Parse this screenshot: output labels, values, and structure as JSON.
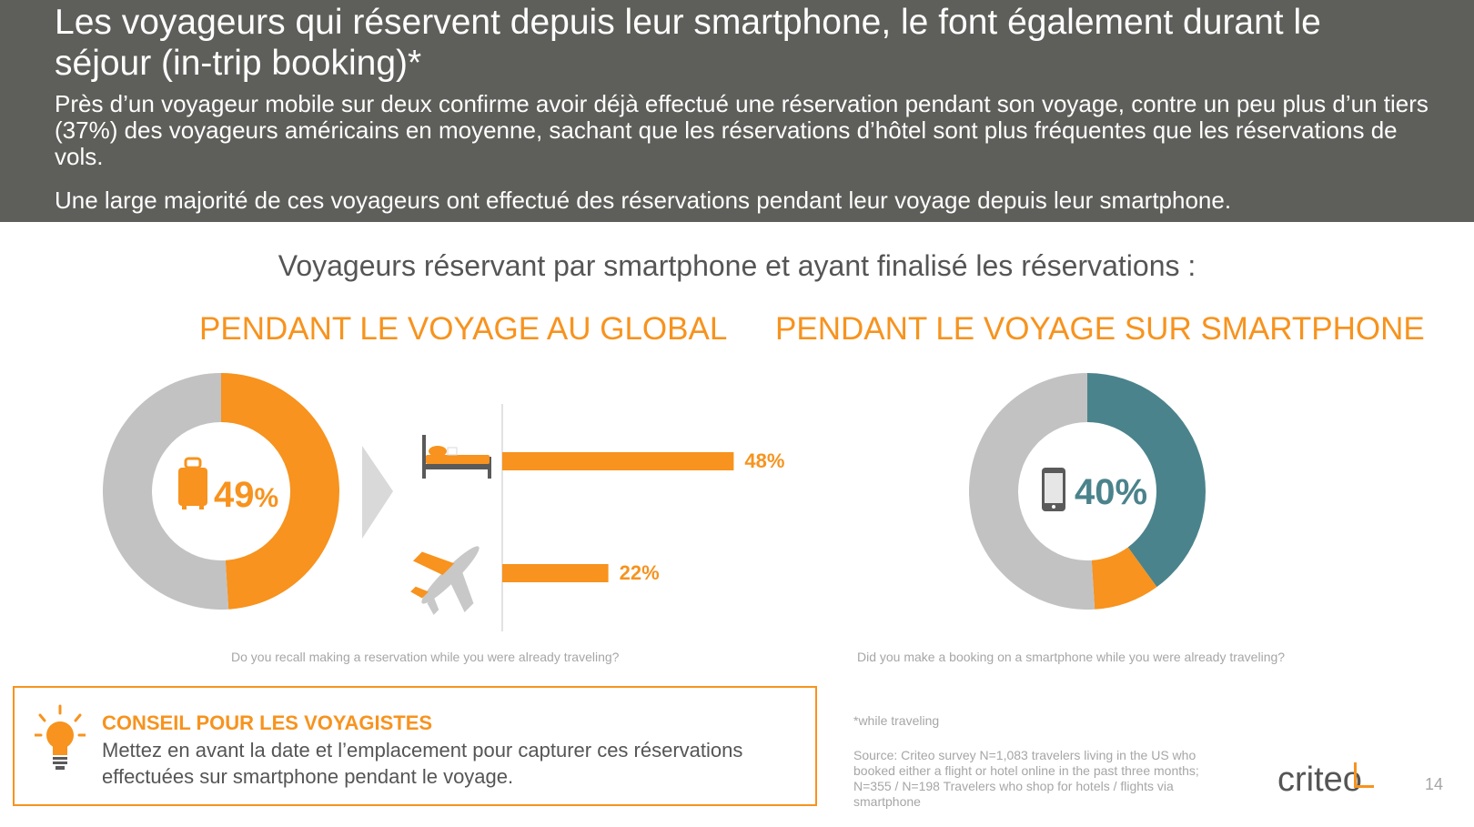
{
  "header": {
    "title": "Les voyageurs qui réservent depuis leur smartphone, le font également durant le séjour (in-trip booking)*",
    "paragraph1": "Près d’un voyageur mobile sur deux confirme avoir déjà effectué une réservation pendant son voyage, contre un peu plus d’un tiers (37%) des voyageurs américains en moyenne, sachant que les réservations d’hôtel sont plus fréquentes que les réservations de vols.",
    "paragraph2": "Une large majorité de ces voyageurs ont effectué des réservations pendant leur voyage depuis leur smartphone."
  },
  "subtitle": "Voyageurs réservant par smartphone et ayant finalisé les réservations :",
  "colors": {
    "orange": "#f7931e",
    "teal": "#4b838c",
    "grey": "#c2c2c2",
    "header_bg": "#5e5e5a"
  },
  "chart_data": [
    {
      "type": "pie",
      "variant": "donut",
      "title": "PENDANT LE VOYAGE AU GLOBAL",
      "center_label": "49%",
      "center_icon": "suitcase-icon",
      "slices": [
        {
          "label": "",
          "value": 49,
          "color": "#f7931e"
        },
        {
          "label": "",
          "value": 51,
          "color": "#c2c2c2"
        }
      ],
      "question": "Do you recall making a reservation while you were already traveling?"
    },
    {
      "type": "bar",
      "orientation": "horizontal",
      "categories": [
        "bed-icon",
        "airplane-icon"
      ],
      "values": [
        48,
        22
      ],
      "value_labels": [
        "48%",
        "22%"
      ],
      "xlim": [
        0,
        100
      ],
      "color": "#f7931e"
    },
    {
      "type": "pie",
      "variant": "donut",
      "title": "PENDANT LE VOYAGE SUR SMARTPHONE",
      "center_label": "40%",
      "center_icon": "smartphone-icon",
      "slices": [
        {
          "label": "",
          "value": 40,
          "color": "#4b838c"
        },
        {
          "label": "",
          "value": 9,
          "color": "#f7931e"
        },
        {
          "label": "",
          "value": 51,
          "color": "#c2c2c2"
        }
      ],
      "question": "Did you make a booking on a smartphone while you were already traveling?"
    }
  ],
  "advice": {
    "icon": "lightbulb-icon",
    "title": "CONSEIL POUR LES VOYAGISTES",
    "text": "Mettez en avant la date et l’emplacement pour capturer ces réservations effectuées sur smartphone pendant le voyage."
  },
  "footer": {
    "note": "*while traveling",
    "source": "Source: Criteo survey N=1,083 travelers living in the US who booked either a flight or hotel online in the past three months; N=355 / N=198 Travelers who shop for hotels / flights via smartphone",
    "logo": "criteo",
    "page": "14"
  }
}
